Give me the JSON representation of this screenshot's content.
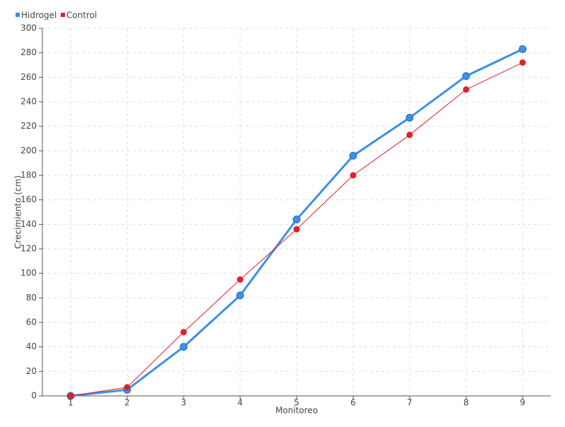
{
  "chart_data": {
    "type": "line",
    "x_label": "Monitoreo",
    "y_label": "Crecimiento (cm)",
    "categories": [
      "1",
      "2",
      "3",
      "4",
      "5",
      "6",
      "7",
      "8",
      "9"
    ],
    "series": [
      {
        "name": "Hidrogel",
        "color": "#3d8fe8",
        "values": [
          0,
          5,
          40,
          82,
          144,
          196,
          227,
          261,
          283
        ]
      },
      {
        "name": "Control",
        "color": "#e0202a",
        "values": [
          0,
          7,
          52,
          95,
          136,
          180,
          213,
          250,
          272
        ]
      }
    ],
    "ylim": [
      0,
      300
    ],
    "yticks": [
      0,
      20,
      40,
      60,
      80,
      100,
      120,
      140,
      160,
      180,
      200,
      220,
      240,
      260,
      280,
      300
    ],
    "grid": true,
    "legend": "top-left"
  }
}
